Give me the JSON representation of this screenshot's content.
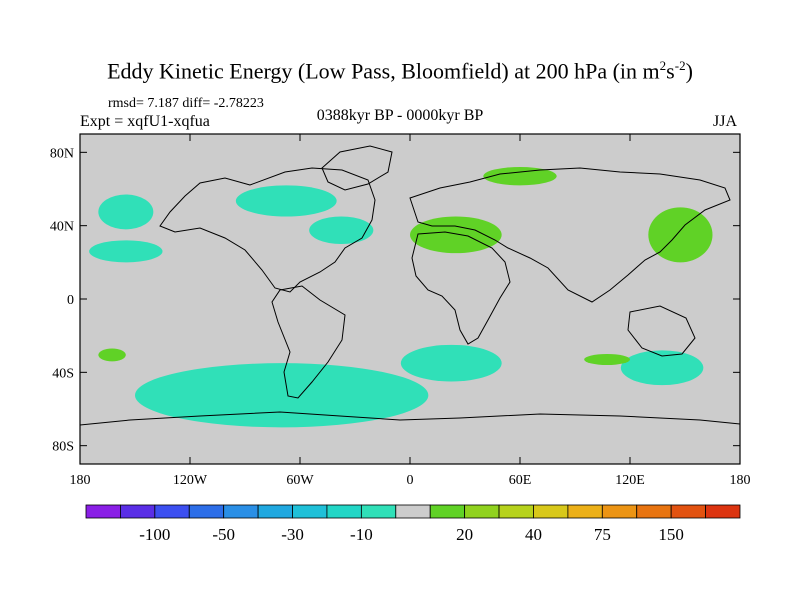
{
  "chart_data": {
    "type": "heatmap",
    "title": "Eddy Kinetic Energy (Low Pass, Bloomfield) at 200 hPa (in m",
    "title_sup1": "2",
    "title_mid": "s",
    "title_sup2": "-2",
    "title_end": ")",
    "stats": "rmsd= 7.187 diff= -2.78223",
    "expt": "Expt = xqfU1-xqfua",
    "period": "0388kyr BP - 0000kyr BP",
    "season": "JJA",
    "x_ticks": [
      {
        "lon": -180,
        "label": "180"
      },
      {
        "lon": -120,
        "label": "120W"
      },
      {
        "lon": -60,
        "label": "60W"
      },
      {
        "lon": 0,
        "label": "0"
      },
      {
        "lon": 60,
        "label": "60E"
      },
      {
        "lon": 120,
        "label": "120E"
      },
      {
        "lon": 180,
        "label": "180"
      }
    ],
    "y_ticks": [
      {
        "lat": 80,
        "label": "80N"
      },
      {
        "lat": 40,
        "label": "40N"
      },
      {
        "lat": 0,
        "label": "0"
      },
      {
        "lat": -40,
        "label": "40S"
      },
      {
        "lat": -80,
        "label": "80S"
      }
    ],
    "lon_range": [
      -180,
      180
    ],
    "lat_range": [
      -90,
      90
    ],
    "colorbar": {
      "colors": [
        "#8a1fe6",
        "#5a2ee6",
        "#3c4ff0",
        "#2d6ee8",
        "#2a8fe6",
        "#20a8e0",
        "#1fc0d8",
        "#22d6c6",
        "#30e0b8",
        "#cccccc",
        "#60d226",
        "#90d21e",
        "#b6d21c",
        "#d8c81a",
        "#ecb018",
        "#ec9414",
        "#e87410",
        "#e25210",
        "#dc3410"
      ],
      "labels": [
        {
          "boundary": 2,
          "label": "-100"
        },
        {
          "boundary": 4,
          "label": "-50"
        },
        {
          "boundary": 6,
          "label": "-30"
        },
        {
          "boundary": 8,
          "label": "-10"
        },
        {
          "boundary": 11,
          "label": "20"
        },
        {
          "boundary": 13,
          "label": "40"
        },
        {
          "boundary": 15,
          "label": "75"
        },
        {
          "boundary": 17,
          "label": "150"
        }
      ]
    },
    "anomaly_regions": [
      {
        "name": "north-pacific-negative",
        "sign": "negative",
        "color": "#30e0b8",
        "lon": [
          -170,
          -140
        ],
        "lat": [
          38,
          57
        ]
      },
      {
        "name": "subtropical-pacific-negative",
        "sign": "negative",
        "color": "#30e0b8",
        "lon": [
          -175,
          -135
        ],
        "lat": [
          20,
          32
        ]
      },
      {
        "name": "north-america-negative",
        "sign": "negative",
        "color": "#30e0b8",
        "lon": [
          -95,
          -40
        ],
        "lat": [
          45,
          62
        ]
      },
      {
        "name": "north-atlantic-negative",
        "sign": "negative",
        "color": "#30e0b8",
        "lon": [
          -55,
          -20
        ],
        "lat": [
          30,
          45
        ]
      },
      {
        "name": "south-atlantic-negative",
        "sign": "negative",
        "color": "#30e0b8",
        "lon": [
          -5,
          50
        ],
        "lat": [
          -45,
          -25
        ]
      },
      {
        "name": "southern-ocean-negative",
        "sign": "negative",
        "color": "#30e0b8",
        "lon": [
          -150,
          10
        ],
        "lat": [
          -70,
          -35
        ]
      },
      {
        "name": "australia-negative",
        "sign": "negative",
        "color": "#30e0b8",
        "lon": [
          115,
          160
        ],
        "lat": [
          -47,
          -28
        ]
      },
      {
        "name": "mediterranean-positive",
        "sign": "positive",
        "color": "#60d226",
        "lon": [
          0,
          50
        ],
        "lat": [
          25,
          45
        ]
      },
      {
        "name": "siberia-positive",
        "sign": "positive",
        "color": "#60d226",
        "lon": [
          40,
          80
        ],
        "lat": [
          62,
          72
        ]
      },
      {
        "name": "japan-positive",
        "sign": "positive",
        "color": "#60d226",
        "lon": [
          130,
          165
        ],
        "lat": [
          20,
          50
        ]
      },
      {
        "name": "south-pacific-positive",
        "sign": "positive",
        "color": "#60d226",
        "lon": [
          -170,
          -155
        ],
        "lat": [
          -34,
          -27
        ]
      },
      {
        "name": "indian-ocean-positive",
        "sign": "positive",
        "color": "#60d226",
        "lon": [
          95,
          120
        ],
        "lat": [
          -36,
          -30
        ]
      }
    ]
  }
}
